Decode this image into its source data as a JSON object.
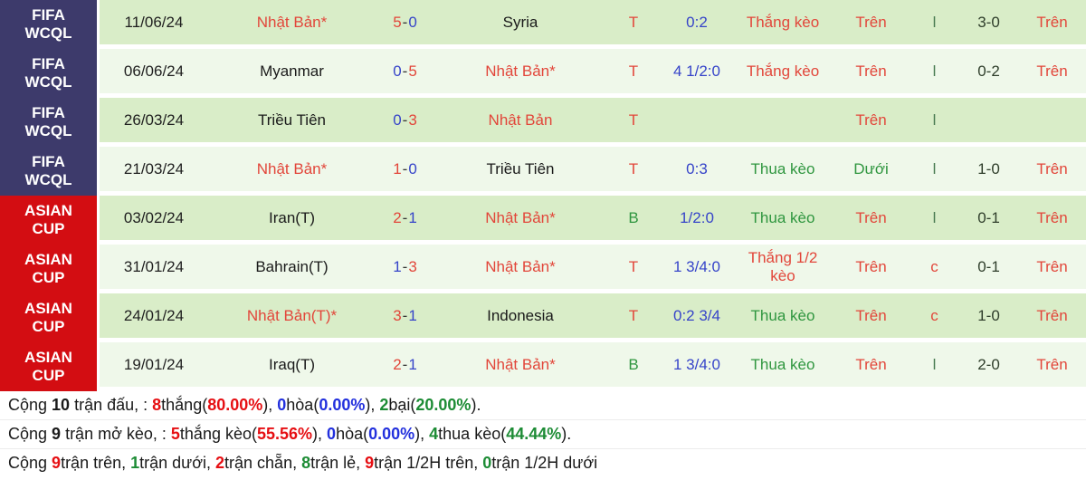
{
  "colors": {
    "red": "#e2463a",
    "blue": "#3644c9",
    "green": "#2f963f",
    "black": "#1a1a1a",
    "dark_ht": "#2f3e2b",
    "lc_green": "#4c7d54",
    "footer_red": "#e60f13",
    "footer_blue": "#2230dd",
    "footer_green": "#1d8c35",
    "league_navy": "#3d3a6b",
    "league_red": "#d30d12",
    "row_dark": "#d9edc8",
    "row_light": "#eff8ea"
  },
  "table": {
    "score_separator": "-",
    "rows": [
      {
        "league": "FIFA WCQL",
        "league_style": "navy",
        "shade": "dark",
        "date": "11/06/24",
        "home": "Nhật Bản*",
        "home_color": "red",
        "score_home": "5",
        "score_home_color": "red",
        "score_away": "0",
        "score_away_color": "blue",
        "away": "Syria",
        "away_color": "black",
        "tb": "T",
        "tb_color": "red",
        "odds": "0:2",
        "result": "Thắng kèo",
        "result_color": "red",
        "ou": "Trên",
        "ou_color": "red",
        "lc": "l",
        "lc_color": "lc",
        "ht": "3-0",
        "fou": "Trên",
        "fou_color": "red"
      },
      {
        "league": "FIFA WCQL",
        "league_style": "navy",
        "shade": "light",
        "date": "06/06/24",
        "home": "Myanmar",
        "home_color": "black",
        "score_home": "0",
        "score_home_color": "blue",
        "score_away": "5",
        "score_away_color": "red",
        "away": "Nhật Bản*",
        "away_color": "red",
        "tb": "T",
        "tb_color": "red",
        "odds": "4 1/2:0",
        "result": "Thắng kèo",
        "result_color": "red",
        "ou": "Trên",
        "ou_color": "red",
        "lc": "l",
        "lc_color": "lc",
        "ht": "0-2",
        "fou": "Trên",
        "fou_color": "red"
      },
      {
        "league": "FIFA WCQL",
        "league_style": "navy",
        "shade": "dark",
        "date": "26/03/24",
        "home": "Triều Tiên",
        "home_color": "black",
        "score_home": "0",
        "score_home_color": "blue",
        "score_away": "3",
        "score_away_color": "red",
        "away": "Nhật Bản",
        "away_color": "red",
        "tb": "T",
        "tb_color": "red",
        "odds": "",
        "result": "",
        "result_color": "black",
        "ou": "Trên",
        "ou_color": "red",
        "lc": "l",
        "lc_color": "lc",
        "ht": "",
        "fou": "",
        "fou_color": "red"
      },
      {
        "league": "FIFA WCQL",
        "league_style": "navy",
        "shade": "light",
        "date": "21/03/24",
        "home": "Nhật Bản*",
        "home_color": "red",
        "score_home": "1",
        "score_home_color": "red",
        "score_away": "0",
        "score_away_color": "blue",
        "away": "Triều Tiên",
        "away_color": "black",
        "tb": "T",
        "tb_color": "red",
        "odds": "0:3",
        "result": "Thua kèo",
        "result_color": "green",
        "ou": "Dưới",
        "ou_color": "green",
        "lc": "l",
        "lc_color": "lc",
        "ht": "1-0",
        "fou": "Trên",
        "fou_color": "red"
      },
      {
        "league": "ASIAN CUP",
        "league_style": "asian",
        "shade": "dark",
        "date": "03/02/24",
        "home": "Iran(T)",
        "home_color": "black",
        "score_home": "2",
        "score_home_color": "red",
        "score_away": "1",
        "score_away_color": "blue",
        "away": "Nhật Bản*",
        "away_color": "red",
        "tb": "B",
        "tb_color": "green",
        "odds": "1/2:0",
        "result": "Thua kèo",
        "result_color": "green",
        "ou": "Trên",
        "ou_color": "red",
        "lc": "l",
        "lc_color": "lc",
        "ht": "0-1",
        "fou": "Trên",
        "fou_color": "red"
      },
      {
        "league": "ASIAN CUP",
        "league_style": "asian",
        "shade": "light",
        "date": "31/01/24",
        "home": "Bahrain(T)",
        "home_color": "black",
        "score_home": "1",
        "score_home_color": "blue",
        "score_away": "3",
        "score_away_color": "red",
        "away": "Nhật Bản*",
        "away_color": "red",
        "tb": "T",
        "tb_color": "red",
        "odds": "1 3/4:0",
        "result": "Thắng 1/2 kèo",
        "result_color": "red",
        "ou": "Trên",
        "ou_color": "red",
        "lc": "c",
        "lc_color": "red",
        "ht": "0-1",
        "fou": "Trên",
        "fou_color": "red"
      },
      {
        "league": "ASIAN CUP",
        "league_style": "asian",
        "shade": "dark",
        "date": "24/01/24",
        "home": "Nhật Bản(T)*",
        "home_color": "red",
        "score_home": "3",
        "score_home_color": "red",
        "score_away": "1",
        "score_away_color": "blue",
        "away": "Indonesia",
        "away_color": "black",
        "tb": "T",
        "tb_color": "red",
        "odds": "0:2 3/4",
        "result": "Thua kèo",
        "result_color": "green",
        "ou": "Trên",
        "ou_color": "red",
        "lc": "c",
        "lc_color": "red",
        "ht": "1-0",
        "fou": "Trên",
        "fou_color": "red"
      },
      {
        "league": "ASIAN CUP",
        "league_style": "asian",
        "shade": "light",
        "date": "19/01/24",
        "home": "Iraq(T)",
        "home_color": "black",
        "score_home": "2",
        "score_home_color": "red",
        "score_away": "1",
        "score_away_color": "blue",
        "away": "Nhật Bản*",
        "away_color": "red",
        "tb": "B",
        "tb_color": "green",
        "odds": "1 3/4:0",
        "result": "Thua kèo",
        "result_color": "green",
        "ou": "Trên",
        "ou_color": "red",
        "lc": "l",
        "lc_color": "lc",
        "ht": "2-0",
        "fou": "Trên",
        "fou_color": "red"
      }
    ]
  },
  "footer": {
    "lines": [
      {
        "segments": [
          {
            "t": "Cộng ",
            "c": "black"
          },
          {
            "t": "10",
            "c": "black",
            "b": true
          },
          {
            "t": " trận đấu, : ",
            "c": "black"
          },
          {
            "t": "8",
            "c": "fred",
            "b": true
          },
          {
            "t": "thắng(",
            "c": "black"
          },
          {
            "t": "80.00%",
            "c": "fred",
            "b": true
          },
          {
            "t": "), ",
            "c": "black"
          },
          {
            "t": "0",
            "c": "fblue",
            "b": true
          },
          {
            "t": "hòa(",
            "c": "black"
          },
          {
            "t": "0.00%",
            "c": "fblue",
            "b": true
          },
          {
            "t": "), ",
            "c": "black"
          },
          {
            "t": "2",
            "c": "fgreen",
            "b": true
          },
          {
            "t": "bại(",
            "c": "black"
          },
          {
            "t": "20.00%",
            "c": "fgreen",
            "b": true
          },
          {
            "t": ").",
            "c": "black"
          }
        ]
      },
      {
        "segments": [
          {
            "t": "Cộng ",
            "c": "black"
          },
          {
            "t": "9",
            "c": "black",
            "b": true
          },
          {
            "t": " trận mở kèo, : ",
            "c": "black"
          },
          {
            "t": "5",
            "c": "fred",
            "b": true
          },
          {
            "t": "thắng kèo(",
            "c": "black"
          },
          {
            "t": "55.56%",
            "c": "fred",
            "b": true
          },
          {
            "t": "), ",
            "c": "black"
          },
          {
            "t": "0",
            "c": "fblue",
            "b": true
          },
          {
            "t": "hòa(",
            "c": "black"
          },
          {
            "t": "0.00%",
            "c": "fblue",
            "b": true
          },
          {
            "t": "), ",
            "c": "black"
          },
          {
            "t": "4",
            "c": "fgreen",
            "b": true
          },
          {
            "t": "thua kèo(",
            "c": "black"
          },
          {
            "t": "44.44%",
            "c": "fgreen",
            "b": true
          },
          {
            "t": ").",
            "c": "black"
          }
        ]
      },
      {
        "segments": [
          {
            "t": "Cộng ",
            "c": "black"
          },
          {
            "t": "9",
            "c": "fred",
            "b": true
          },
          {
            "t": "trận trên, ",
            "c": "black"
          },
          {
            "t": "1",
            "c": "fgreen",
            "b": true
          },
          {
            "t": "trận dưới, ",
            "c": "black"
          },
          {
            "t": "2",
            "c": "fred",
            "b": true
          },
          {
            "t": "trận chẵn, ",
            "c": "black"
          },
          {
            "t": "8",
            "c": "fgreen",
            "b": true
          },
          {
            "t": "trận lẻ, ",
            "c": "black"
          },
          {
            "t": "9",
            "c": "fred",
            "b": true
          },
          {
            "t": "trận 1/2H trên, ",
            "c": "black"
          },
          {
            "t": "0",
            "c": "fgreen",
            "b": true
          },
          {
            "t": "trận 1/2H dưới",
            "c": "black"
          }
        ]
      }
    ]
  }
}
